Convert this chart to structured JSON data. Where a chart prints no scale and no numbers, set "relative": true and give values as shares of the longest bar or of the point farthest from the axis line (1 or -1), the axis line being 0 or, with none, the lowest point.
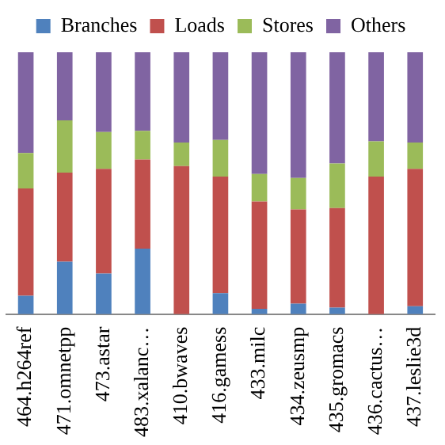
{
  "chart_data": {
    "type": "bar",
    "stacked": true,
    "relative": true,
    "legend": "top",
    "categories": [
      "464.h264ref",
      "471.omnetpp",
      "473.astar",
      "483.xalanc…",
      "410.bwaves",
      "416.gamess",
      "433.milc",
      "434.zeusmp",
      "435.gromacs",
      "436.cactus…",
      "437.leslie3d"
    ],
    "series": [
      {
        "name": "Branches",
        "color": "#4f81bd",
        "values": [
          0.07,
          0.2,
          0.155,
          0.25,
          0,
          0.08,
          0.02,
          0.04,
          0.025,
          0,
          0.03
        ]
      },
      {
        "name": "Loads",
        "color": "#c0504d",
        "values": [
          0.41,
          0.34,
          0.4,
          0.34,
          0.565,
          0.445,
          0.41,
          0.36,
          0.38,
          0.525,
          0.525
        ]
      },
      {
        "name": "Stores",
        "color": "#9bbb59",
        "values": [
          0.135,
          0.2,
          0.14,
          0.11,
          0.09,
          0.14,
          0.105,
          0.12,
          0.17,
          0.135,
          0.1
        ]
      },
      {
        "name": "Others",
        "color": "#8064a2",
        "values": [
          0.385,
          0.26,
          0.305,
          0.3,
          0.345,
          0.335,
          0.465,
          0.48,
          0.425,
          0.34,
          0.345
        ]
      }
    ]
  }
}
